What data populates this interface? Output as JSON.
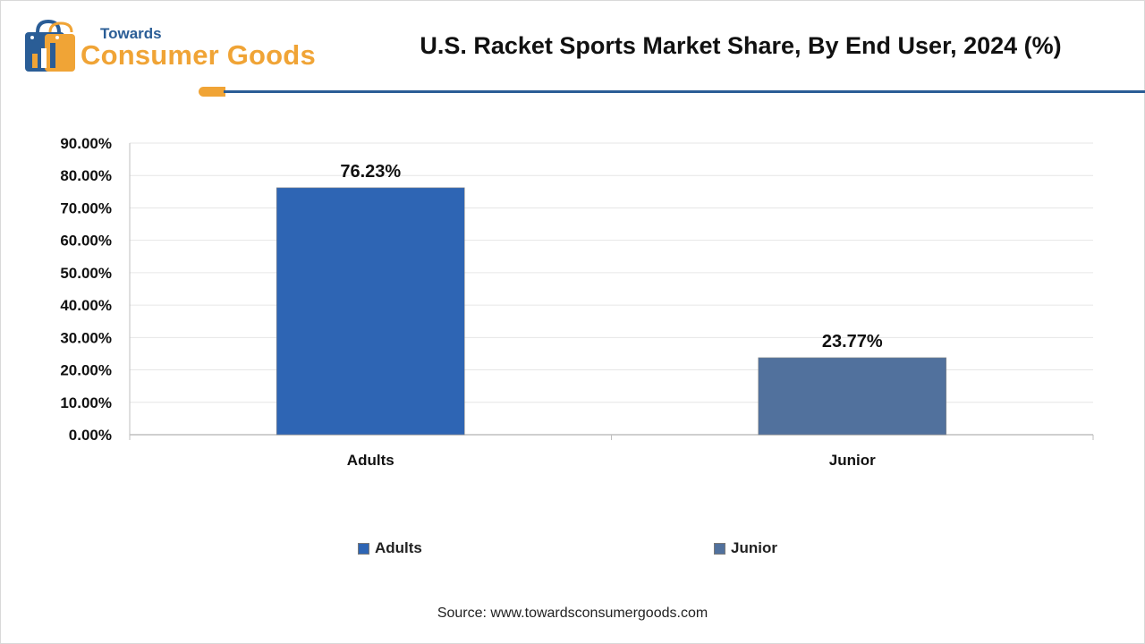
{
  "header": {
    "logo_top": "Towards",
    "logo_main": "Consumer Goods",
    "title": "U.S. Racket Sports Market Share, By End User, 2024 (%)"
  },
  "colors": {
    "brand_blue": "#2a5d96",
    "brand_orange": "#f0a436",
    "adults": "#2e65b4",
    "junior": "#51719d"
  },
  "chart_data": {
    "type": "bar",
    "title": "U.S. Racket Sports Market Share, By End User, 2024 (%)",
    "categories": [
      "Adults",
      "Junior"
    ],
    "values": [
      76.23,
      23.77
    ],
    "value_labels": [
      "76.23%",
      "23.77%"
    ],
    "series": [
      {
        "name": "Adults",
        "values": [
          76.23,
          null
        ]
      },
      {
        "name": "Junior",
        "values": [
          null,
          23.77
        ]
      }
    ],
    "ylim": [
      0,
      90
    ],
    "ytick_step": 10,
    "ytick_labels": [
      "0.00%",
      "10.00%",
      "20.00%",
      "30.00%",
      "40.00%",
      "50.00%",
      "60.00%",
      "70.00%",
      "80.00%",
      "90.00%"
    ],
    "xlabel": "",
    "ylabel": "",
    "grid": true,
    "legend": {
      "position": "bottom",
      "items": [
        {
          "label": "Adults",
          "color": "#2e65b4"
        },
        {
          "label": "Junior",
          "color": "#51719d"
        }
      ]
    }
  },
  "footer": {
    "source": "Source: www.towardsconsumergoods.com"
  }
}
